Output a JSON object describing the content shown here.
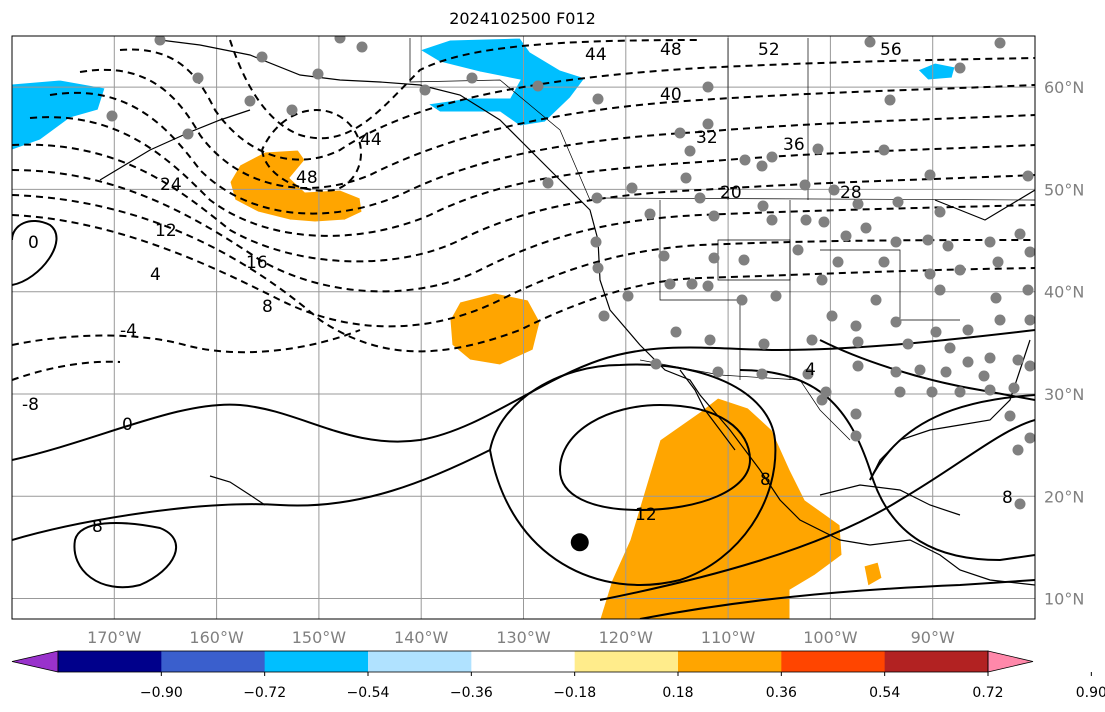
{
  "title": "2024102500 F012",
  "map": {
    "projection": "lat-lon",
    "lon_range": [
      -180,
      -80
    ],
    "lat_range": [
      8,
      65
    ],
    "lon_ticks": [
      {
        "value": -170,
        "label": "170°W"
      },
      {
        "value": -160,
        "label": "160°W"
      },
      {
        "value": -150,
        "label": "150°W"
      },
      {
        "value": -140,
        "label": "140°W"
      },
      {
        "value": -130,
        "label": "130°W"
      },
      {
        "value": -120,
        "label": "120°W"
      },
      {
        "value": -110,
        "label": "110°W"
      },
      {
        "value": -100,
        "label": "100°W"
      },
      {
        "value": -90,
        "label": "90°W"
      }
    ],
    "lat_ticks": [
      {
        "value": 10,
        "label": "10°N"
      },
      {
        "value": 20,
        "label": "20°N"
      },
      {
        "value": 30,
        "label": "30°N"
      },
      {
        "value": 40,
        "label": "40°N"
      },
      {
        "value": 50,
        "label": "50°N"
      },
      {
        "value": 60,
        "label": "60°N"
      }
    ],
    "contour_labels": [
      "44",
      "48",
      "52",
      "56",
      "40",
      "32",
      "36",
      "20",
      "28",
      "24",
      "12",
      "16",
      "4",
      "8",
      "0",
      "-4",
      "-8",
      "12",
      "8"
    ],
    "marker_point": {
      "lon": -124.5,
      "lat": 15.5
    }
  },
  "colorbar": {
    "ticks": [
      "−0.90",
      "−0.72",
      "−0.54",
      "−0.36",
      "−0.18",
      "0.18",
      "0.36",
      "0.54",
      "0.72",
      "0.90"
    ],
    "colors": [
      "#9932cc",
      "#00008b",
      "#3a5fcd",
      "#00bfff",
      "#b0e2ff",
      "#ffffff",
      "#ffec8b",
      "#ffa500",
      "#ff4500",
      "#b22222",
      "#ff88aa"
    ]
  },
  "colors": {
    "positive_anomaly": "#ffa500",
    "negative_anomaly": "#00bfff",
    "station_dot": "#808080",
    "grid": "#999999"
  }
}
